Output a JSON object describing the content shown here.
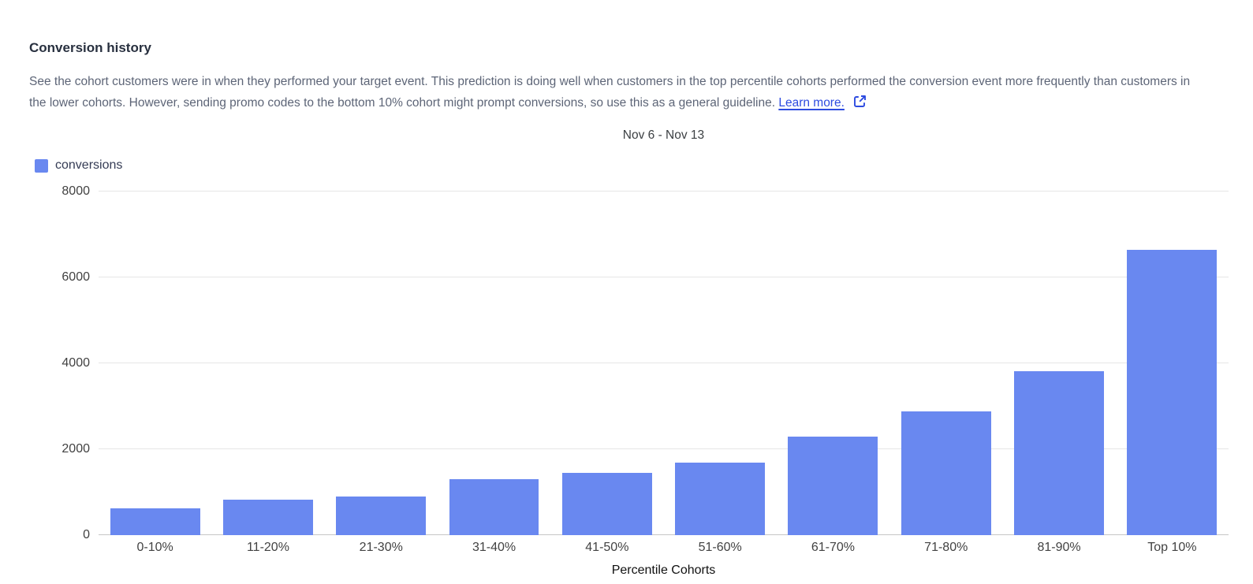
{
  "header": {
    "title": "Conversion history",
    "description": "See the cohort customers were in when they performed your target event. This prediction is doing well when customers in the top percentile cohorts performed the conversion event more frequently than customers in the lower cohorts. However, sending promo codes to the bottom 10% cohort might prompt conversions, so use this as a general guideline.",
    "learn_more_label": "Learn more."
  },
  "colors": {
    "bar": "#6988F0",
    "link": "#2D4BE0",
    "heading_text": "#28303F",
    "body_text": "#5D6577",
    "legend_text": "#353C55",
    "chart_text": "#3C4043",
    "tick_text": "#424242",
    "gridline": "#E6E6E6",
    "baseline": "#C6C6C6"
  },
  "chart_data": {
    "type": "bar",
    "title": "Nov 6 - Nov 13",
    "categories": [
      "0-10%",
      "11-20%",
      "21-30%",
      "31-40%",
      "41-50%",
      "51-60%",
      "61-70%",
      "71-80%",
      "81-90%",
      "Top 10%"
    ],
    "series": [
      {
        "name": "conversions",
        "color": "#6988F0",
        "values": [
          630,
          820,
          900,
          1300,
          1450,
          1680,
          2290,
          2880,
          3820,
          6650
        ]
      }
    ],
    "xlabel": "Percentile Cohorts",
    "ylabel": "",
    "ylim": [
      0,
      8000
    ],
    "yticks": [
      0,
      2000,
      4000,
      6000,
      8000
    ],
    "grid": true,
    "legend_position": "top-left"
  }
}
